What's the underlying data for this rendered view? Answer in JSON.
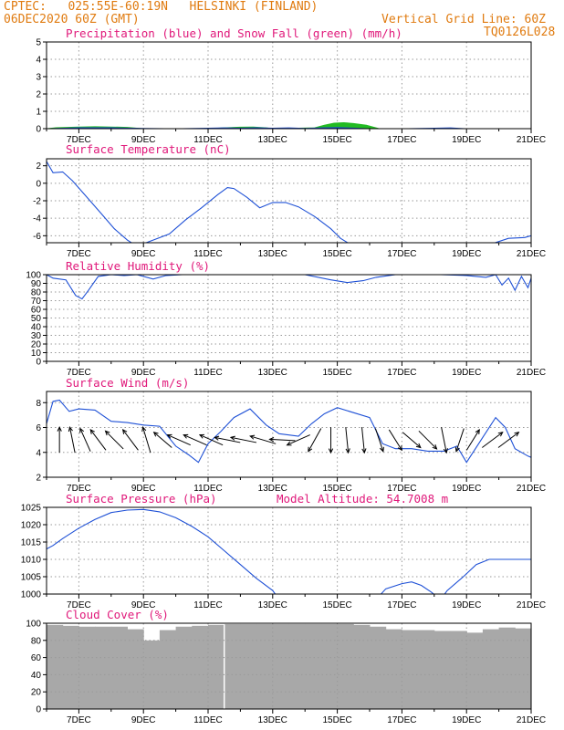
{
  "header": {
    "line1_left": "CPTEC:   025:55E-60:19N   HELSINKI (FINLAND)",
    "line2_left": "06DEC2020 60Z (GMT)",
    "line2_right": "Vertical Grid Line: 60Z",
    "line3_right": "TQ0126L028"
  },
  "colors": {
    "header": "#e07b10",
    "title": "#e0187a",
    "line": "#1e50d6",
    "snow": "#22bb22",
    "cloud": "#a8a8a8"
  },
  "xaxis": {
    "start_day": 6,
    "end_day": 21,
    "ticks": [
      "7DEC",
      "9DEC",
      "11DEC",
      "13DEC",
      "15DEC",
      "17DEC",
      "19DEC",
      "21DEC"
    ],
    "tick_days": [
      7,
      9,
      11,
      13,
      15,
      17,
      19,
      21
    ]
  },
  "chart_data": [
    {
      "type": "area",
      "title": "Precipitation (blue) and Snow Fall (green) (mm/h)",
      "ylim": [
        0,
        5
      ],
      "yticks": [
        0,
        1,
        2,
        3,
        4,
        5
      ],
      "series": [
        {
          "name": "Precipitation",
          "color": "#1e50d6",
          "x": [
            6,
            7,
            8,
            9,
            10,
            11,
            11.5,
            12,
            12.5,
            13,
            13.5,
            14,
            14.5,
            15,
            15.5,
            16,
            17,
            18,
            18.5,
            19,
            20,
            21
          ],
          "y": [
            0,
            0.06,
            0.06,
            0.02,
            0,
            0.03,
            0.05,
            0.04,
            0.06,
            0.03,
            0.05,
            0.02,
            0.05,
            0.07,
            0.04,
            0,
            0,
            0.03,
            0.05,
            0,
            0,
            0
          ]
        },
        {
          "name": "Snow Fall",
          "color": "#22bb22",
          "x": [
            6,
            6.3,
            7,
            7.5,
            8,
            8.5,
            9,
            11,
            11.5,
            12,
            12.4,
            12.8,
            13,
            14.3,
            14.6,
            14.9,
            15.2,
            15.5,
            15.9,
            16.3,
            17,
            21
          ],
          "y": [
            0,
            0.06,
            0.1,
            0.12,
            0.1,
            0.08,
            0,
            0,
            0.05,
            0.09,
            0.1,
            0.05,
            0,
            0.05,
            0.2,
            0.32,
            0.35,
            0.3,
            0.2,
            0,
            0,
            0
          ]
        }
      ]
    },
    {
      "type": "line",
      "title": "Surface Temperature (nC)",
      "ylim": [
        -6.8,
        2.8
      ],
      "yticks": [
        2,
        0,
        -2,
        -4,
        -6
      ],
      "series": [
        {
          "x": [
            6,
            6.2,
            6.5,
            6.8,
            7.3,
            7.7,
            8.1,
            8.5,
            8.8,
            9.3,
            9.8,
            10.3,
            10.8,
            11.3,
            11.6,
            11.8,
            12.2,
            12.6,
            13,
            13.4,
            13.8,
            14.3,
            14.8,
            15.1,
            15.5,
            16,
            17,
            18,
            19,
            19.8,
            20.3,
            20.8,
            21
          ],
          "y": [
            2.5,
            1.2,
            1.3,
            0.3,
            -1.8,
            -3.5,
            -5.2,
            -6.5,
            -7.2,
            -6.5,
            -5.8,
            -4.2,
            -2.8,
            -1.3,
            -0.5,
            -0.6,
            -1.6,
            -2.8,
            -2.2,
            -2.2,
            -2.7,
            -3.8,
            -5.2,
            -6.3,
            -7.2,
            -7.5,
            -7.5,
            -7.5,
            -7.5,
            -6.9,
            -6.3,
            -6.2,
            -6.0
          ]
        }
      ]
    },
    {
      "type": "line",
      "title": "Relative Humidity (%)",
      "ylim": [
        0,
        100
      ],
      "yticks": [
        0,
        10,
        20,
        30,
        40,
        50,
        60,
        70,
        80,
        90,
        100
      ],
      "series": [
        {
          "x": [
            6,
            6.2,
            6.6,
            6.9,
            7.1,
            7.3,
            7.6,
            8.0,
            8.4,
            8.8,
            9.3,
            9.7,
            10.2,
            10.6,
            11,
            12,
            13,
            14,
            14.8,
            15.3,
            15.8,
            16.2,
            16.8,
            17.5,
            18.2,
            19.0,
            19.6,
            19.9,
            20.1,
            20.3,
            20.5,
            20.7,
            20.9,
            21
          ],
          "y": [
            100,
            96,
            94,
            76,
            72,
            82,
            98,
            100,
            99,
            100,
            95,
            99,
            100,
            100,
            100,
            100,
            100,
            100,
            94,
            91,
            93,
            97,
            100,
            100,
            100,
            99,
            97,
            100,
            88,
            96,
            82,
            98,
            85,
            96
          ]
        }
      ]
    },
    {
      "type": "line",
      "title": "Surface Wind (m/s)",
      "ylim": [
        2,
        8.9
      ],
      "yticks": [
        2,
        4,
        6,
        8
      ],
      "series": [
        {
          "x": [
            6,
            6.2,
            6.4,
            6.7,
            7,
            7.5,
            8,
            8.5,
            9,
            9.5,
            10,
            10.4,
            10.7,
            11,
            11.4,
            11.8,
            12.3,
            12.8,
            13.2,
            13.8,
            14.2,
            14.6,
            15,
            15.5,
            16,
            16.4,
            16.8,
            17.3,
            17.8,
            18.3,
            18.7,
            19,
            19.5,
            19.9,
            20.2,
            20.5,
            20.9,
            21
          ],
          "y": [
            6.3,
            8.1,
            8.2,
            7.3,
            7.5,
            7.4,
            6.5,
            6.4,
            6.2,
            6.1,
            4.5,
            3.8,
            3.2,
            4.7,
            5.7,
            6.8,
            7.5,
            6.2,
            5.5,
            5.3,
            6.3,
            7.1,
            7.6,
            7.2,
            6.8,
            4.7,
            4.3,
            4.3,
            4.1,
            4.1,
            4.5,
            3.2,
            5.2,
            6.8,
            6.0,
            4.3,
            3.7,
            3.6
          ]
        }
      ],
      "arrows": [
        {
          "x": 6.4,
          "dx": 0,
          "dy": 1
        },
        {
          "x": 6.8,
          "dx": -0.2,
          "dy": 1
        },
        {
          "x": 7.2,
          "dx": -0.4,
          "dy": 0.9
        },
        {
          "x": 7.6,
          "dx": -0.6,
          "dy": 0.8
        },
        {
          "x": 8.1,
          "dx": -0.7,
          "dy": 0.7
        },
        {
          "x": 8.6,
          "dx": -0.6,
          "dy": 0.8
        },
        {
          "x": 9.1,
          "dx": -0.3,
          "dy": 1
        },
        {
          "x": 9.6,
          "dx": -0.7,
          "dy": 0.6
        },
        {
          "x": 10.1,
          "dx": -0.9,
          "dy": 0.4
        },
        {
          "x": 10.6,
          "dx": -0.9,
          "dy": 0.4
        },
        {
          "x": 11.1,
          "dx": -0.9,
          "dy": 0.4
        },
        {
          "x": 11.6,
          "dx": -1,
          "dy": 0.2
        },
        {
          "x": 12.1,
          "dx": -1,
          "dy": 0.2
        },
        {
          "x": 12.7,
          "dx": -1,
          "dy": 0.3
        },
        {
          "x": 13.3,
          "dx": -1,
          "dy": 0.05
        },
        {
          "x": 13.8,
          "dx": -0.9,
          "dy": -0.4
        },
        {
          "x": 14.3,
          "dx": -0.5,
          "dy": -0.9
        },
        {
          "x": 14.8,
          "dx": 0,
          "dy": -1
        },
        {
          "x": 15.3,
          "dx": 0.1,
          "dy": -1
        },
        {
          "x": 15.8,
          "dx": 0.1,
          "dy": -1
        },
        {
          "x": 16.3,
          "dx": 0.3,
          "dy": -0.9
        },
        {
          "x": 16.8,
          "dx": 0.5,
          "dy": -0.8
        },
        {
          "x": 17.3,
          "dx": 0.7,
          "dy": -0.6
        },
        {
          "x": 17.8,
          "dx": 0.7,
          "dy": -0.7
        },
        {
          "x": 18.3,
          "dx": 0.2,
          "dy": -1
        },
        {
          "x": 18.8,
          "dx": -0.3,
          "dy": -0.9
        },
        {
          "x": 19.2,
          "dx": 0.5,
          "dy": 0.8
        },
        {
          "x": 19.8,
          "dx": 0.8,
          "dy": 0.6
        },
        {
          "x": 20.3,
          "dx": 0.8,
          "dy": 0.6
        }
      ]
    },
    {
      "type": "line",
      "title": "Surface Pressure (hPa)",
      "annotation": "Model Altitude: 54.7008 m",
      "ylim": [
        1000,
        1025
      ],
      "yticks": [
        1000,
        1005,
        1010,
        1015,
        1020,
        1025
      ],
      "series": [
        {
          "x": [
            6,
            6.2,
            6.5,
            7,
            7.5,
            8,
            8.5,
            9,
            9.5,
            10,
            10.5,
            11,
            11.5,
            12,
            12.5,
            13,
            13.2,
            16.2,
            16.5,
            17,
            17.3,
            17.6,
            17.9,
            18.2,
            18.4,
            18.9,
            19.3,
            19.7,
            20.1,
            20.5,
            21
          ],
          "y": [
            1013,
            1014,
            1016,
            1019,
            1021.5,
            1023.5,
            1024.2,
            1024.4,
            1023.7,
            1022,
            1019.5,
            1016.5,
            1012.5,
            1008.5,
            1004.5,
            1001,
            1000,
            1000,
            1001.5,
            1003,
            1003.5,
            1002.5,
            1000.6,
            1000,
            1001,
            1005,
            1008.5,
            1010,
            1010,
            1010,
            1010
          ]
        }
      ]
    },
    {
      "type": "bar",
      "title": "Cloud Cover (%)",
      "ylim": [
        0,
        100
      ],
      "yticks": [
        0,
        20,
        40,
        60,
        80,
        100
      ],
      "x": [
        6,
        6.5,
        7,
        7.5,
        8,
        8.5,
        9,
        9.5,
        10,
        10.5,
        11,
        11.5,
        12,
        12.5,
        13,
        13.5,
        14,
        14.5,
        15,
        15.5,
        16,
        16.5,
        17,
        17.5,
        18,
        18.5,
        19,
        19.5,
        20,
        20.5,
        21
      ],
      "values": [
        98,
        97,
        96,
        96,
        96,
        93,
        80,
        92,
        96,
        97,
        98,
        99,
        99,
        99,
        99,
        99,
        99,
        99,
        99,
        98,
        96,
        93,
        92,
        92,
        91,
        91,
        89,
        93,
        95,
        94,
        92
      ]
    }
  ]
}
